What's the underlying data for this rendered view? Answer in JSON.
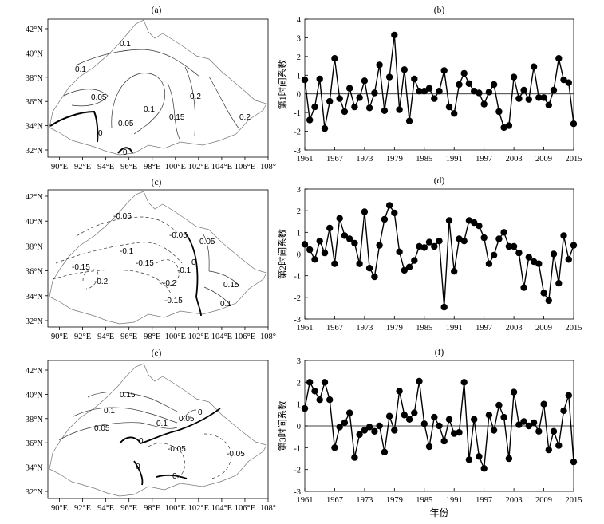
{
  "maps": [
    {
      "title": "(a)",
      "xticks": [
        "90°E",
        "92°E",
        "94°E",
        "96°E",
        "98°E",
        "100°E",
        "102°E",
        "104°E",
        "106°E",
        "108°"
      ],
      "yticks": [
        "32°N",
        "34°N",
        "36°N",
        "38°N",
        "40°N",
        "42°N"
      ],
      "contour_labels": [
        "0.1",
        "0.1",
        "0.05",
        "0.1",
        "0.05",
        "0.2",
        "0.15",
        "0.2",
        "0",
        "0"
      ]
    },
    {
      "title": "(c)",
      "xticks": [
        "90°E",
        "92°E",
        "94°E",
        "96°E",
        "98°E",
        "100°E",
        "102°E",
        "104°E",
        "106°E",
        "108°"
      ],
      "yticks": [
        "32°N",
        "34°N",
        "36°N",
        "38°N",
        "40°N",
        "42°N"
      ],
      "contour_labels": [
        "-0.05",
        "-0.1",
        "-0.05",
        "0.05",
        "-0.15",
        "-0.15",
        "-0.1",
        "0",
        "-0.2",
        "-0.2",
        "0.15",
        "0.1",
        "-0.15"
      ]
    },
    {
      "title": "(e)",
      "xticks": [
        "90°E",
        "92°E",
        "94°E",
        "96°E",
        "98°E",
        "100°E",
        "102°E",
        "104°E",
        "106°E",
        "108°"
      ],
      "yticks": [
        "32°N",
        "34°N",
        "36°N",
        "38°N",
        "40°N",
        "42°N"
      ],
      "contour_labels": [
        "0.15",
        "0.1",
        "0.1",
        "0.05",
        "0",
        "0.05",
        "0",
        "-0.05",
        "-0.05",
        "0",
        "0"
      ]
    }
  ],
  "chart_data": [
    {
      "type": "line",
      "title": "(b)",
      "ylabel": "第1时间系数",
      "xlabel": "",
      "xlim": [
        1961,
        2015
      ],
      "ylim": [
        -3,
        4
      ],
      "xticks": [
        "1961",
        "1967",
        "1973",
        "1979",
        "1985",
        "1991",
        "1997",
        "2003",
        "2009",
        "2015"
      ],
      "yticks": [
        "-3",
        "-2",
        "-1",
        "0",
        "1",
        "2",
        "3",
        "4"
      ],
      "x_start": 1961,
      "values": [
        0.75,
        -1.4,
        -0.7,
        0.8,
        -1.85,
        -0.4,
        1.9,
        -0.25,
        -0.95,
        0.3,
        -0.7,
        -0.2,
        0.7,
        -0.75,
        0.05,
        1.55,
        -0.9,
        0.9,
        3.15,
        -0.85,
        1.3,
        -1.45,
        0.8,
        0.15,
        0.15,
        0.3,
        -0.25,
        0.15,
        1.25,
        -0.7,
        -1.05,
        0.5,
        1.1,
        0.55,
        0.15,
        0.05,
        -0.55,
        0.1,
        0.5,
        -0.95,
        -1.8,
        -1.7,
        0.9,
        -0.25,
        0.2,
        -0.3,
        1.45,
        -0.2,
        -0.2,
        -0.6,
        0.2,
        1.9,
        0.75,
        0.6,
        -1.6
      ]
    },
    {
      "type": "line",
      "title": "(d)",
      "ylabel": "第2时间系数",
      "xlabel": "",
      "xlim": [
        1961,
        2015
      ],
      "ylim": [
        -3,
        3
      ],
      "xticks": [
        "1961",
        "1967",
        "1973",
        "1979",
        "1985",
        "1991",
        "1997",
        "2003",
        "2009",
        "2015"
      ],
      "yticks": [
        "-3",
        "-2",
        "-1",
        "0",
        "1",
        "2",
        "3"
      ],
      "x_start": 1961,
      "values": [
        0.45,
        0.2,
        -0.25,
        0.6,
        0.05,
        1.2,
        -0.45,
        1.65,
        0.85,
        0.7,
        0.5,
        -0.45,
        1.95,
        -0.65,
        -1.05,
        0.4,
        1.6,
        2.25,
        1.9,
        0.1,
        -0.75,
        -0.6,
        -0.3,
        0.35,
        0.3,
        0.55,
        0.35,
        0.6,
        -2.45,
        1.55,
        -0.8,
        0.7,
        0.6,
        1.55,
        1.45,
        1.3,
        0.75,
        -0.45,
        -0.05,
        0.7,
        1.0,
        0.35,
        0.35,
        0.05,
        -1.55,
        -0.15,
        -0.35,
        -0.45,
        -1.8,
        -2.15,
        0.0,
        -1.35,
        0.85,
        -0.25,
        0.4
      ]
    },
    {
      "type": "line",
      "title": "(f)",
      "ylabel": "第3时间系数",
      "xlabel": "年份",
      "xlim": [
        1961,
        2015
      ],
      "ylim": [
        -3,
        3
      ],
      "xticks": [
        "1961",
        "1967",
        "1973",
        "1979",
        "1985",
        "1991",
        "1997",
        "2003",
        "2009",
        "2015"
      ],
      "yticks": [
        "-3",
        "-2",
        "-1",
        "0",
        "1",
        "2",
        "3"
      ],
      "x_start": 1961,
      "values": [
        0.8,
        2.0,
        1.6,
        1.2,
        2.0,
        1.2,
        -1.0,
        -0.05,
        0.15,
        0.6,
        -1.45,
        -0.4,
        -0.2,
        -0.05,
        -0.25,
        0.0,
        -1.2,
        0.45,
        -0.2,
        1.6,
        0.5,
        0.3,
        0.6,
        2.05,
        0.1,
        -0.95,
        0.4,
        0.0,
        -0.7,
        0.3,
        -0.35,
        -0.3,
        2.0,
        -1.55,
        0.3,
        -1.4,
        -1.95,
        0.5,
        -0.2,
        0.95,
        0.4,
        -1.5,
        1.55,
        0.05,
        0.2,
        0.0,
        0.15,
        -0.25,
        1.0,
        -1.1,
        -0.25,
        -0.9,
        0.7,
        1.4,
        -1.65
      ]
    }
  ]
}
